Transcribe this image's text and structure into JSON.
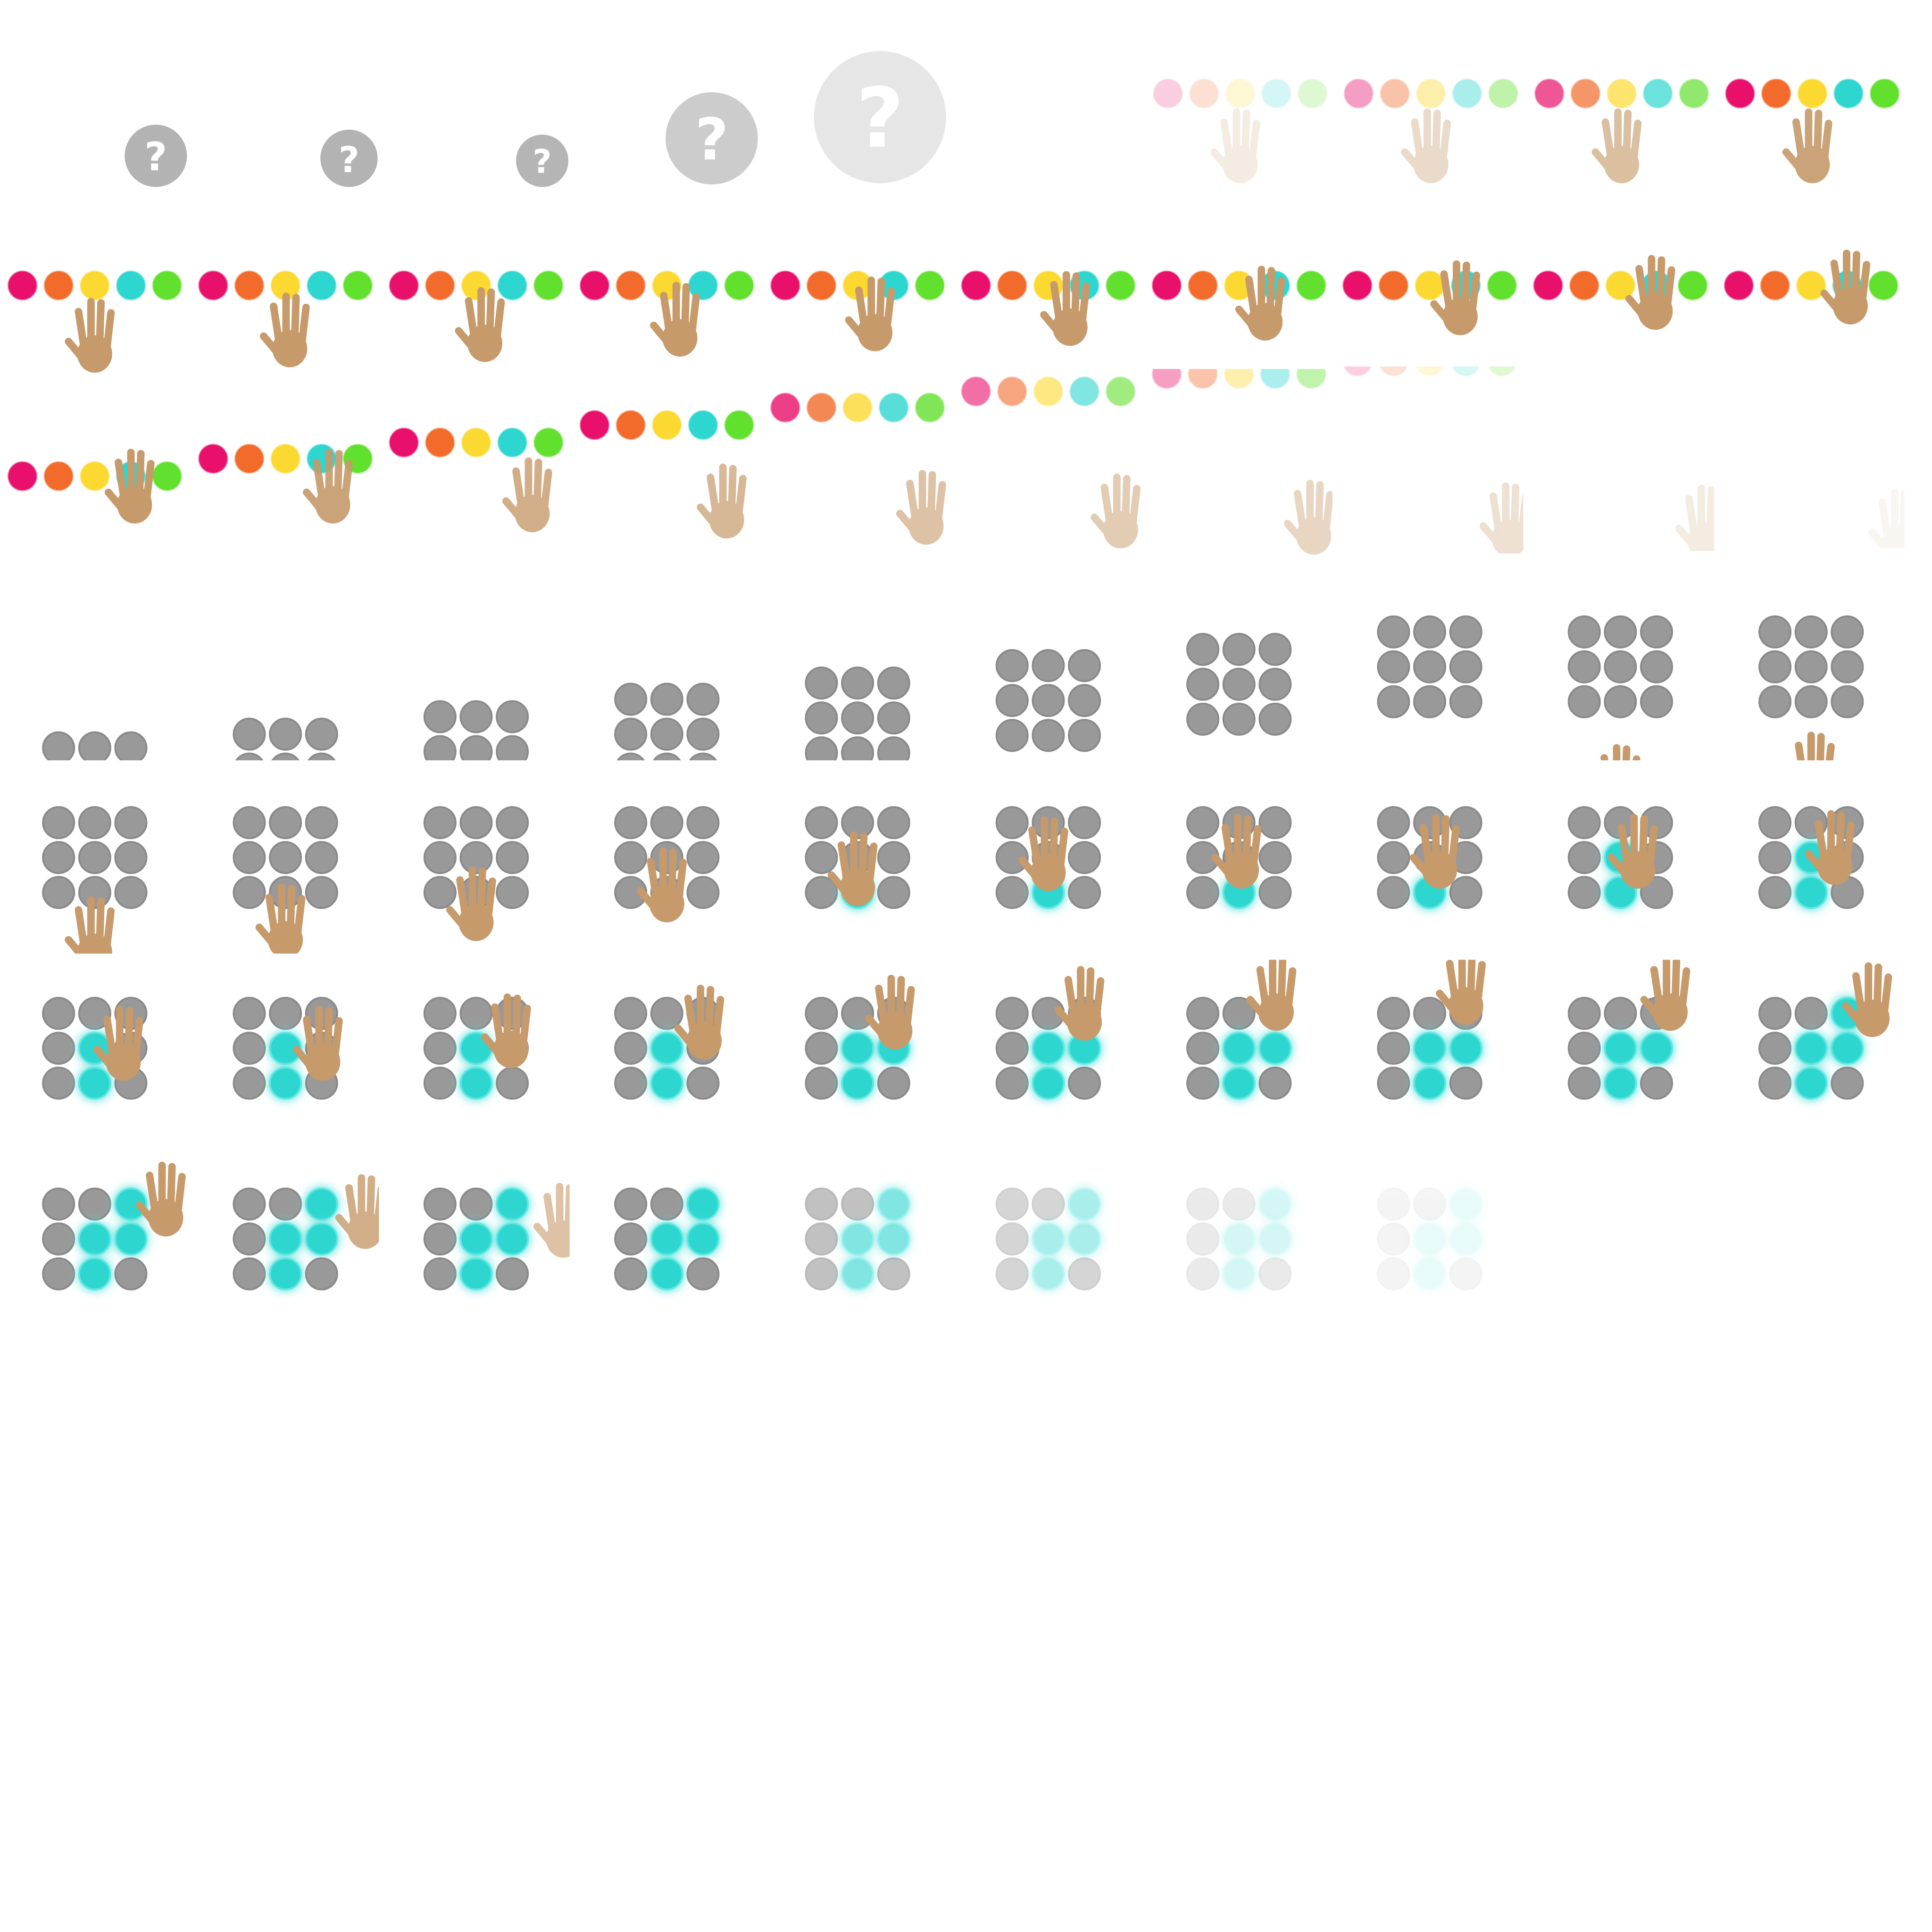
{
  "question_marks": [
    "?",
    "?",
    "?",
    "?",
    "?"
  ]
}
